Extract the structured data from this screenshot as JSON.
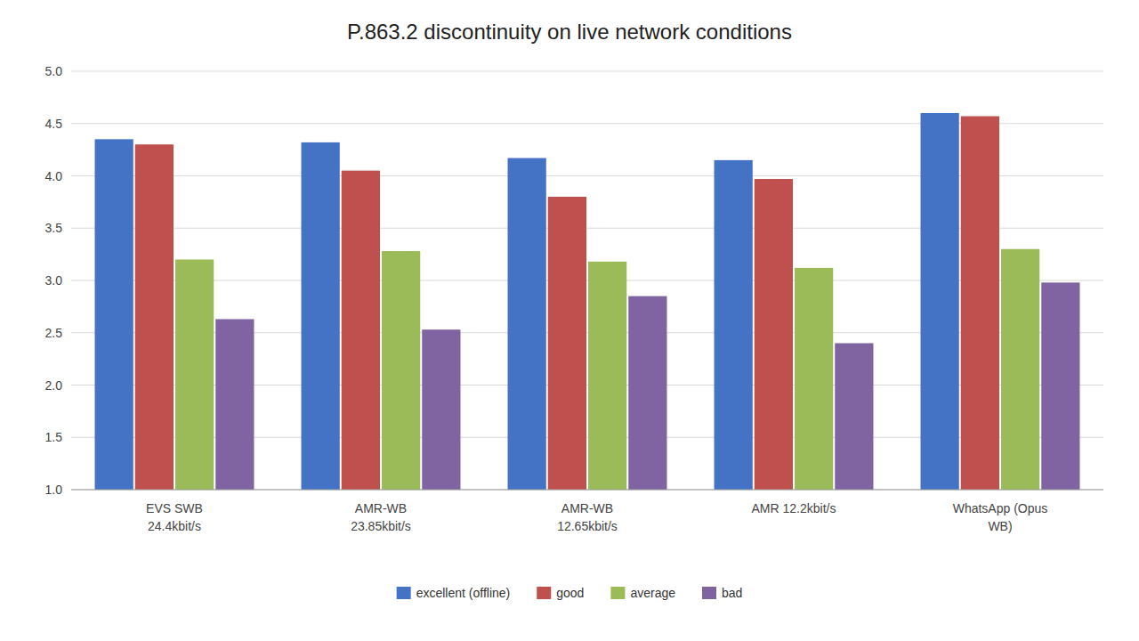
{
  "chart_data": {
    "type": "bar",
    "title": "P.863.2 discontinuity on live network conditions",
    "categories": [
      "EVS SWB\n24.4kbit/s",
      "AMR-WB\n23.85kbit/s",
      "AMR-WB\n12.65kbit/s",
      "AMR 12.2kbit/s",
      "WhatsApp (Opus\nWB)"
    ],
    "series": [
      {
        "name": "excellent (offline)",
        "color": "#4472C4",
        "values": [
          4.35,
          4.32,
          4.17,
          4.15,
          4.6
        ]
      },
      {
        "name": "good",
        "color": "#C0504D",
        "values": [
          4.3,
          4.05,
          3.8,
          3.97,
          4.57
        ]
      },
      {
        "name": "average",
        "color": "#9BBB59",
        "values": [
          3.2,
          3.28,
          3.18,
          3.12,
          3.3
        ]
      },
      {
        "name": "bad",
        "color": "#8064A2",
        "values": [
          2.63,
          2.53,
          2.85,
          2.4,
          2.98
        ]
      }
    ],
    "ylim": [
      1.0,
      5.0
    ],
    "yticks": [
      {
        "value": 1.0,
        "label": "1.0"
      },
      1.5,
      {
        "value": 2.0,
        "label": "2.0"
      },
      2.5,
      {
        "value": 3.0,
        "label": "3.0"
      },
      3.5,
      {
        "value": 4.0,
        "label": "4.0"
      },
      4.5,
      {
        "value": 5.0,
        "label": "5.0"
      }
    ],
    "grid": true,
    "legend": "bottom"
  }
}
